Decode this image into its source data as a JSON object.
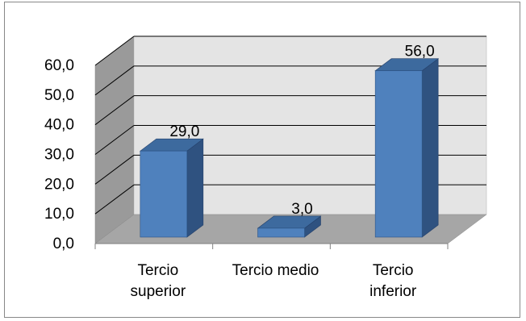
{
  "chart_data": {
    "type": "bar",
    "style": "3d-column",
    "title": "",
    "xlabel": "",
    "ylabel": "",
    "categories": [
      [
        "Tercio",
        "superior"
      ],
      [
        "Tercio medio"
      ],
      [
        "Tercio",
        "inferior"
      ]
    ],
    "values": [
      29.0,
      3.0,
      56.0
    ],
    "value_labels": [
      "29,0",
      "3,0",
      "56,0"
    ],
    "ylim": [
      0,
      60
    ],
    "yticks": [
      "0,0",
      "10,0",
      "20,0",
      "30,0",
      "40,0",
      "50,0",
      "60,0"
    ],
    "grid": true,
    "legend": "none",
    "colors": {
      "bar_front": "#4f81bd",
      "bar_top": "#3d6a9e",
      "bar_side": "#2f5280",
      "wall": "#e4e4e4",
      "wall_side": "#9a9a9a",
      "floor": "#a6a6a6",
      "grid": "#000000"
    }
  }
}
